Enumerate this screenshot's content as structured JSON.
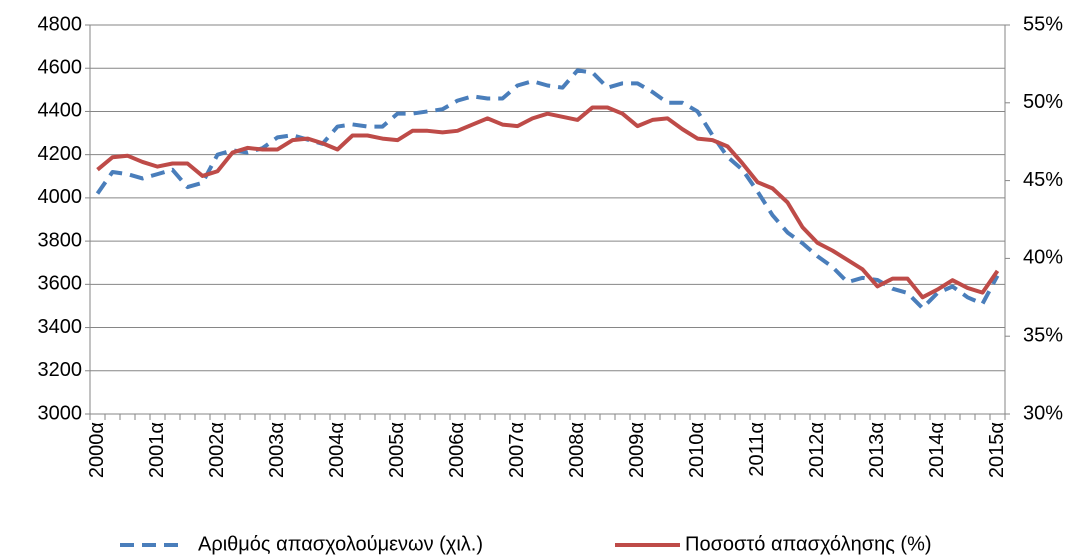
{
  "chart_data": {
    "type": "line",
    "categories": [
      "2000α",
      null,
      null,
      null,
      "2001α",
      null,
      null,
      null,
      "2002α",
      null,
      null,
      null,
      "2003α",
      null,
      null,
      null,
      "2004α",
      null,
      null,
      null,
      "2005α",
      null,
      null,
      null,
      "2006α",
      null,
      null,
      null,
      "2007α",
      null,
      null,
      null,
      "2008α",
      null,
      null,
      null,
      "2009α",
      null,
      null,
      null,
      "2010α",
      null,
      null,
      null,
      "2011α",
      null,
      null,
      null,
      "2012α",
      null,
      null,
      null,
      "2013α",
      null,
      null,
      null,
      "2014α",
      null,
      null,
      null,
      "2015α"
    ],
    "series": [
      {
        "name": "Αριθμός απασχολούμενων (χιλ.)",
        "color": "#4a7ebb",
        "dash": true,
        "values": [
          4020,
          4120,
          4110,
          4090,
          4110,
          4130,
          4050,
          4070,
          4200,
          4220,
          4210,
          4230,
          4280,
          4290,
          4270,
          4250,
          4330,
          4340,
          4330,
          4330,
          4390,
          4390,
          4400,
          4410,
          4450,
          4470,
          4460,
          4460,
          4520,
          4540,
          4520,
          4510,
          4590,
          4580,
          4510,
          4530,
          4530,
          4490,
          4440,
          4440,
          4400,
          4290,
          4190,
          4130,
          4030,
          3920,
          3840,
          3790,
          3730,
          3680,
          3610,
          3630,
          3620,
          3580,
          3560,
          3490,
          3560,
          3590,
          3540,
          3510,
          3640
        ]
      },
      {
        "name": "Ποσοστό απασχόλησης (%)",
        "color": "#be4b48",
        "axis": "y2",
        "dash": false,
        "values": [
          45.7,
          46.5,
          46.6,
          46.2,
          45.9,
          46.1,
          46.1,
          45.3,
          45.6,
          46.8,
          47.1,
          47.0,
          47.0,
          47.6,
          47.7,
          47.4,
          47.0,
          47.9,
          47.9,
          47.7,
          47.6,
          48.2,
          48.2,
          48.1,
          48.2,
          48.6,
          49.0,
          48.6,
          48.5,
          49.0,
          49.3,
          49.1,
          48.9,
          49.7,
          49.7,
          49.3,
          48.5,
          48.9,
          49.0,
          48.3,
          47.7,
          47.6,
          47.2,
          46.1,
          44.9,
          44.5,
          43.6,
          42.0,
          41.0,
          40.5,
          39.9,
          39.3,
          38.2,
          38.7,
          38.7,
          37.5,
          38.0,
          38.6,
          38.1,
          37.8,
          39.2
        ]
      }
    ],
    "ylim": [
      3000,
      4800
    ],
    "yticks": [
      3000,
      3200,
      3400,
      3600,
      3800,
      4000,
      4200,
      4400,
      4600,
      4800
    ],
    "y2lim": [
      30,
      55
    ],
    "y2ticks": [
      {
        "value": 30,
        "label": "30%"
      },
      {
        "value": 35,
        "label": "35%"
      },
      {
        "value": 40,
        "label": "40%"
      },
      {
        "value": 45,
        "label": "45%"
      },
      {
        "value": 50,
        "label": "50%"
      },
      {
        "value": 55,
        "label": "55%"
      }
    ],
    "grid": true,
    "legend": "bottom"
  }
}
